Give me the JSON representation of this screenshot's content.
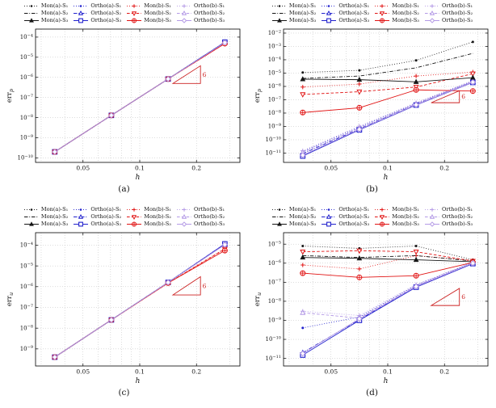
{
  "captions": {
    "a": "(a)",
    "b": "(b)",
    "c": "(c)",
    "d": "(d)"
  },
  "legend_series": [
    {
      "name": "MonA1",
      "label": "Mon(a)-S₁",
      "color": "#161616",
      "dash": "dot",
      "marker": "dot"
    },
    {
      "name": "OrthoA1",
      "label": "Ortho(a)-S₁",
      "color": "#2121cd",
      "dash": "dot",
      "marker": "dot"
    },
    {
      "name": "MonB1",
      "label": "Mon(b)-S₁",
      "color": "#e11414",
      "dash": "dot",
      "marker": "plus"
    },
    {
      "name": "OrthoB1",
      "label": "Ortho(b)-S₁",
      "color": "#b49ae6",
      "dash": "dot",
      "marker": "plus"
    },
    {
      "name": "MonA2",
      "label": "Mon(a)-S₂",
      "color": "#161616",
      "dash": "dashdot",
      "marker": "none"
    },
    {
      "name": "OrthoA2",
      "label": "Ortho(a)-S₂",
      "color": "#2121cd",
      "dash": "dashdot",
      "marker": "triu"
    },
    {
      "name": "MonB2",
      "label": "Mon(b)-S₂",
      "color": "#e11414",
      "dash": "dash",
      "marker": "trid"
    },
    {
      "name": "OrthoB2",
      "label": "Ortho(b)-S₂",
      "color": "#b49ae6",
      "dash": "dash",
      "marker": "triu"
    },
    {
      "name": "MonA3",
      "label": "Mon(a)-S₃",
      "color": "#161616",
      "dash": "solid",
      "marker": "triuf"
    },
    {
      "name": "OrthoA3",
      "label": "Ortho(a)-S₃",
      "color": "#2121cd",
      "dash": "solid",
      "marker": "sq"
    },
    {
      "name": "MonB3",
      "label": "Mon(b)-S₃",
      "color": "#e11414",
      "dash": "solid",
      "marker": "oplus"
    },
    {
      "name": "OrthoB3",
      "label": "Ortho(b)-S₃",
      "color": "#b49ae6",
      "dash": "solid",
      "marker": "di"
    }
  ],
  "chart_data": [
    {
      "id": "a",
      "type": "line",
      "xscale": "log",
      "yscale": "log",
      "xlabel": "h",
      "ylabel_base": "err",
      "ylabel_sub": "p",
      "x": [
        0.0354,
        0.0707,
        0.1414,
        0.2828
      ],
      "xlim": [
        0.028,
        0.34
      ],
      "ylim": [
        6e-11,
        0.00025
      ],
      "xticks": [
        0.05,
        0.1,
        0.2
      ],
      "xtick_labels": [
        "0.05",
        "0.1",
        "0.2"
      ],
      "yticks": [
        -4,
        -5,
        -6,
        -7,
        -8,
        -9,
        -10
      ],
      "xgrid": [
        0.03,
        0.04,
        0.05,
        0.06,
        0.07,
        0.08,
        0.09,
        0.1,
        0.2,
        0.3
      ],
      "slope": {
        "x1": 0.15,
        "x2": 0.21,
        "y1": 5e-07,
        "order": 6,
        "label": "6"
      },
      "series": [
        {
          "name": "MonA1",
          "values": [
            2e-10,
            1.3e-08,
            8.3e-07,
            5.5e-05
          ]
        },
        {
          "name": "OrthoA1",
          "values": [
            2e-10,
            1.3e-08,
            8.3e-07,
            5.6e-05
          ]
        },
        {
          "name": "MonB1",
          "values": [
            2e-10,
            1.3e-08,
            8.3e-07,
            4.8e-05
          ]
        },
        {
          "name": "OrthoB1",
          "values": [
            2e-10,
            1.3e-08,
            8.3e-07,
            5.3e-05
          ]
        },
        {
          "name": "MonA2",
          "values": [
            2e-10,
            1.3e-08,
            8.3e-07,
            5.5e-05
          ]
        },
        {
          "name": "OrthoA2",
          "values": [
            2e-10,
            1.3e-08,
            8.3e-07,
            5.6e-05
          ]
        },
        {
          "name": "MonB2",
          "values": [
            2e-10,
            1.3e-08,
            8.3e-07,
            4.8e-05
          ]
        },
        {
          "name": "OrthoB2",
          "values": [
            2e-10,
            1.3e-08,
            8.3e-07,
            5.3e-05
          ]
        },
        {
          "name": "MonA3",
          "values": [
            2e-10,
            1.3e-08,
            8.3e-07,
            5.5e-05
          ]
        },
        {
          "name": "OrthoA3",
          "values": [
            2e-10,
            1.3e-08,
            8.3e-07,
            5.6e-05
          ]
        },
        {
          "name": "MonB3",
          "values": [
            2e-10,
            1.3e-08,
            8.3e-07,
            4.8e-05
          ]
        },
        {
          "name": "OrthoB3",
          "values": [
            2e-10,
            1.3e-08,
            8.3e-07,
            5.3e-05
          ]
        }
      ]
    },
    {
      "id": "b",
      "type": "line",
      "xscale": "log",
      "yscale": "log",
      "xlabel": "h",
      "ylabel_base": "err",
      "ylabel_sub": "p",
      "x": [
        0.0354,
        0.0707,
        0.1414,
        0.2828
      ],
      "xlim": [
        0.028,
        0.34
      ],
      "ylim": [
        2e-12,
        0.02
      ],
      "xticks": [
        0.05,
        0.1,
        0.2
      ],
      "xtick_labels": [
        "0.05",
        "0.1",
        "0.2"
      ],
      "yticks": [
        -2,
        -3,
        -4,
        -5,
        -6,
        -7,
        -8,
        -9,
        -10,
        -11
      ],
      "xgrid": [
        0.03,
        0.04,
        0.05,
        0.06,
        0.07,
        0.08,
        0.09,
        0.1,
        0.2,
        0.3
      ],
      "slope": {
        "x1": 0.17,
        "x2": 0.24,
        "y1": 6e-08,
        "order": 6,
        "label": "6"
      },
      "series": [
        {
          "name": "MonA1",
          "values": [
            1.1e-05,
            1.6e-05,
            9e-05,
            0.0022
          ]
        },
        {
          "name": "OrthoA1",
          "values": [
            1.3e-11,
            9e-10,
            5.5e-08,
            2.6e-06
          ]
        },
        {
          "name": "MonB1",
          "values": [
            9e-07,
            1.5e-06,
            6e-06,
            1.2e-05
          ]
        },
        {
          "name": "OrthoB1",
          "values": [
            1.5e-11,
            1.05e-09,
            6e-08,
            2.8e-06
          ]
        },
        {
          "name": "MonA2",
          "values": [
            4e-06,
            6e-06,
            2.5e-05,
            0.0003
          ]
        },
        {
          "name": "OrthoA2",
          "values": [
            9e-12,
            6.5e-10,
            4.5e-08,
            2.2e-06
          ]
        },
        {
          "name": "MonB2",
          "values": [
            2.5e-07,
            4e-07,
            9e-07,
            9e-06
          ]
        },
        {
          "name": "OrthoB2",
          "values": [
            1.1e-11,
            7.5e-10,
            5e-08,
            2.4e-06
          ]
        },
        {
          "name": "MonA3",
          "values": [
            3.5e-06,
            3.2e-06,
            2.2e-06,
            4.5e-06
          ]
        },
        {
          "name": "OrthoA3",
          "values": [
            6e-12,
            5.5e-10,
            4e-08,
            2e-06
          ]
        },
        {
          "name": "MonB3",
          "values": [
            1.1e-08,
            2.5e-08,
            5.5e-07,
            4.5e-07
          ]
        },
        {
          "name": "OrthoB3",
          "values": [
            7e-12,
            6e-10,
            4.2e-08,
            2.1e-06
          ]
        }
      ]
    },
    {
      "id": "c",
      "type": "line",
      "xscale": "log",
      "yscale": "log",
      "xlabel": "h",
      "ylabel_base": "err",
      "ylabel_sub": "u",
      "x": [
        0.0354,
        0.0707,
        0.1414,
        0.2828
      ],
      "xlim": [
        0.028,
        0.34
      ],
      "ylim": [
        1.5e-10,
        0.0004
      ],
      "xticks": [
        0.05,
        0.1,
        0.2
      ],
      "xtick_labels": [
        "0.05",
        "0.1",
        "0.2"
      ],
      "yticks": [
        -4,
        -5,
        -6,
        -7,
        -8,
        -9
      ],
      "xgrid": [
        0.03,
        0.04,
        0.05,
        0.06,
        0.07,
        0.08,
        0.09,
        0.1,
        0.2,
        0.3
      ],
      "slope": {
        "x1": 0.15,
        "x2": 0.21,
        "y1": 4e-07,
        "order": 6,
        "label": "6"
      },
      "series": [
        {
          "name": "MonA1",
          "values": [
            4e-10,
            2.5e-08,
            1.6e-06,
            0.00011
          ]
        },
        {
          "name": "OrthoA1",
          "values": [
            4e-10,
            2.5e-08,
            1.6e-06,
            0.000115
          ]
        },
        {
          "name": "MonB1",
          "values": [
            4e-10,
            2.5e-08,
            1.5e-06,
            7e-05
          ]
        },
        {
          "name": "OrthoB1",
          "values": [
            4e-10,
            2.5e-08,
            1.6e-06,
            0.000105
          ]
        },
        {
          "name": "MonA2",
          "values": [
            4e-10,
            2.5e-08,
            1.6e-06,
            0.00011
          ]
        },
        {
          "name": "OrthoA2",
          "values": [
            4e-10,
            2.5e-08,
            1.6e-06,
            0.000115
          ]
        },
        {
          "name": "MonB2",
          "values": [
            4e-10,
            2.5e-08,
            1.5e-06,
            6.5e-05
          ]
        },
        {
          "name": "OrthoB2",
          "values": [
            4e-10,
            2.5e-08,
            1.6e-06,
            0.000105
          ]
        },
        {
          "name": "MonA3",
          "values": [
            4e-10,
            2.5e-08,
            1.6e-06,
            0.00011
          ]
        },
        {
          "name": "OrthoA3",
          "values": [
            4e-10,
            2.5e-08,
            1.6e-06,
            0.000115
          ]
        },
        {
          "name": "MonB3",
          "values": [
            4e-10,
            2.5e-08,
            1.5e-06,
            5.5e-05
          ]
        },
        {
          "name": "OrthoB3",
          "values": [
            4e-10,
            2.5e-08,
            1.6e-06,
            0.000105
          ]
        }
      ]
    },
    {
      "id": "d",
      "type": "line",
      "xscale": "log",
      "yscale": "log",
      "xlabel": "h",
      "ylabel_base": "err",
      "ylabel_sub": "u",
      "x": [
        0.0354,
        0.0707,
        0.1414,
        0.2828
      ],
      "xlim": [
        0.028,
        0.34
      ],
      "ylim": [
        4e-12,
        4e-05
      ],
      "xticks": [
        0.05,
        0.1,
        0.2
      ],
      "xtick_labels": [
        "0.05",
        "0.1",
        "0.2"
      ],
      "yticks": [
        -5,
        -6,
        -7,
        -8,
        -9,
        -10,
        -11
      ],
      "xgrid": [
        0.03,
        0.04,
        0.05,
        0.06,
        0.07,
        0.08,
        0.09,
        0.1,
        0.2,
        0.3
      ],
      "slope": {
        "x1": 0.17,
        "x2": 0.24,
        "y1": 6e-09,
        "order": 6,
        "label": "6"
      },
      "series": [
        {
          "name": "MonA1",
          "values": [
            8e-06,
            6e-06,
            8e-06,
            1.5e-06
          ]
        },
        {
          "name": "OrthoA1",
          "values": [
            4e-10,
            1.5e-09,
            7e-08,
            1.1e-06
          ]
        },
        {
          "name": "MonB1",
          "values": [
            8e-07,
            5e-07,
            2.5e-06,
            1.4e-06
          ]
        },
        {
          "name": "OrthoB1",
          "values": [
            3e-09,
            1.8e-09,
            7.5e-08,
            1.15e-06
          ]
        },
        {
          "name": "MonA2",
          "values": [
            2.5e-06,
            2e-06,
            2.5e-06,
            1.3e-06
          ]
        },
        {
          "name": "OrthoA2",
          "values": [
            2e-11,
            1.1e-09,
            6e-08,
            1e-06
          ]
        },
        {
          "name": "MonB2",
          "values": [
            4e-06,
            4.5e-06,
            4e-06,
            1.3e-06
          ]
        },
        {
          "name": "OrthoB2",
          "values": [
            2.5e-09,
            1.3e-09,
            6.5e-08,
            1.05e-06
          ]
        },
        {
          "name": "MonA3",
          "values": [
            2e-06,
            1.8e-06,
            1.5e-06,
            1.2e-06
          ]
        },
        {
          "name": "OrthoA3",
          "values": [
            1.5e-11,
            1e-09,
            5.5e-08,
            9.5e-07
          ]
        },
        {
          "name": "MonB3",
          "values": [
            3e-07,
            1.8e-07,
            2.2e-07,
            1.1e-06
          ]
        },
        {
          "name": "OrthoB3",
          "values": [
            1.8e-11,
            1.2e-09,
            6e-08,
            1e-06
          ]
        }
      ]
    }
  ],
  "colors": {
    "grid": "#bbbbbb",
    "axis": "#000000",
    "slope_triangle": "#cc2222"
  }
}
